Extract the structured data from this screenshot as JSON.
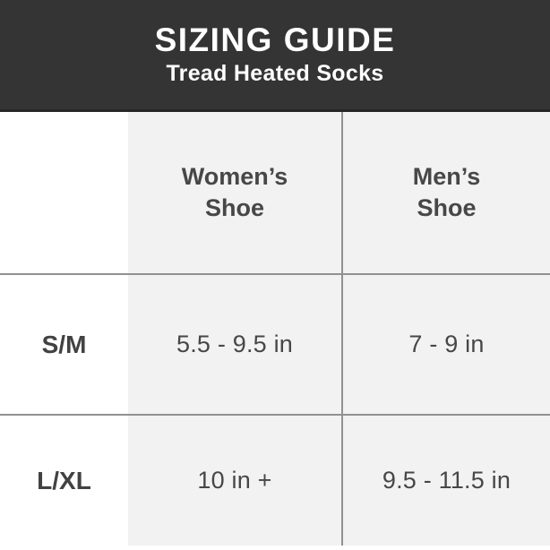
{
  "chart_data": {
    "type": "table",
    "title": "SIZING GUIDE",
    "subtitle": "Tread Heated Socks",
    "columns": [
      "",
      "Women’s Shoe",
      "Men’s Shoe"
    ],
    "rows": [
      [
        "S/M",
        "5.5 - 9.5 in",
        "7 - 9 in"
      ],
      [
        "L/XL",
        "10 in +",
        "9.5 - 11.5 in"
      ]
    ]
  },
  "colors": {
    "header_bg": "#343434",
    "header_border": "#262626",
    "header_text": "#ffffff",
    "shaded_cell_bg": "#f2f2f2",
    "grid_line": "#919191",
    "table_text": "#474747"
  }
}
